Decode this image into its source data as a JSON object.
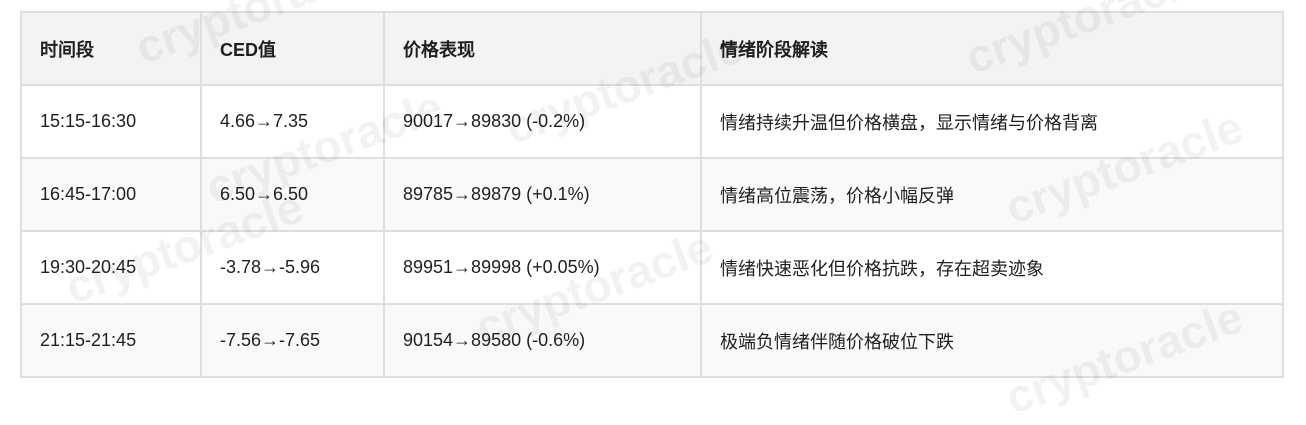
{
  "watermark": "cryptoracle",
  "table": {
    "headers": [
      "时间段",
      "CED值",
      "价格表现",
      "情绪阶段解读"
    ],
    "rows": [
      [
        "15:15-16:30",
        "4.66→7.35",
        "90017→89830 (-0.2%)",
        "情绪持续升温但价格横盘，显示情绪与价格背离"
      ],
      [
        "16:45-17:00",
        "6.50→6.50",
        "89785→89879 (+0.1%)",
        "情绪高位震荡，价格小幅反弹"
      ],
      [
        "19:30-20:45",
        "-3.78→-5.96",
        "89951→89998 (+0.05%)",
        "情绪快速恶化但价格抗跌，存在超卖迹象"
      ],
      [
        "21:15-21:45",
        "-7.56→-7.65",
        "90154→89580 (-0.6%)",
        "极端负情绪伴随价格破位下跌"
      ]
    ]
  }
}
